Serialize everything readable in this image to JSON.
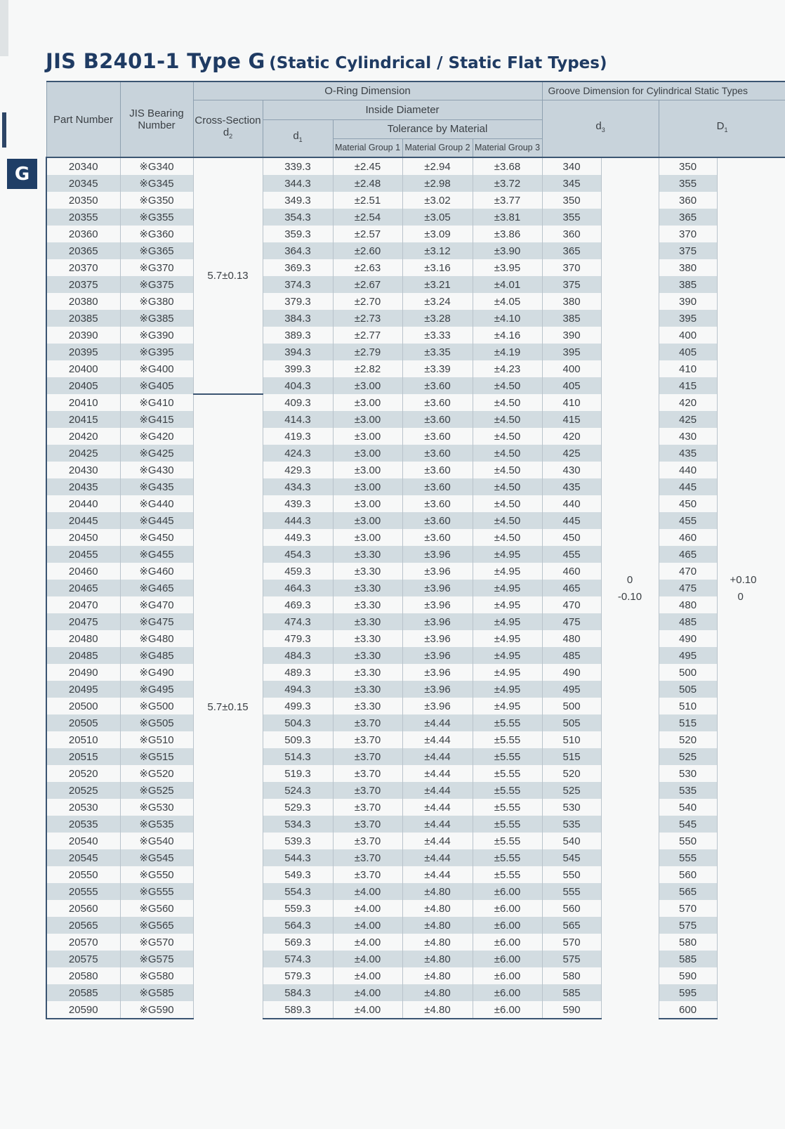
{
  "side_tab": {
    "label": "G"
  },
  "title": {
    "main": "JIS B2401-1 Type G",
    "sub": "(Static Cylindrical / Static Flat Types)"
  },
  "header": {
    "part_number": "Part Number",
    "jis_bearing_number": "JIS Bearing Number",
    "oring_dimension": "O-Ring Dimension",
    "cross_section": "Cross-Section",
    "cross_section_sym": "d",
    "cross_section_sub": "2",
    "inside_diameter": "Inside Diameter",
    "d1_sym": "d",
    "d1_sub": "1",
    "tolerance_by_material": "Tolerance by Material",
    "material_groups": [
      "Material Group 1",
      "Material Group 2",
      "Material Group 3"
    ],
    "groove_dimension": "Groove Dimension for Cylindrical Static Types",
    "d3_sym": "d",
    "d3_sub": "3",
    "D1_sym": "D",
    "D1_sub": "1"
  },
  "cross_section_groups": [
    {
      "value": "5.7±0.13",
      "rows": 14
    },
    {
      "value": "5.7±0.15",
      "rows": 37
    }
  ],
  "d3_tolerance": [
    "0",
    "-0.10"
  ],
  "D1_tolerance": [
    "+0.10",
    "0"
  ],
  "rows": [
    [
      "20340",
      "※G340",
      "339.3",
      "±2.45",
      "±2.94",
      "±3.68",
      "340",
      "350"
    ],
    [
      "20345",
      "※G345",
      "344.3",
      "±2.48",
      "±2.98",
      "±3.72",
      "345",
      "355"
    ],
    [
      "20350",
      "※G350",
      "349.3",
      "±2.51",
      "±3.02",
      "±3.77",
      "350",
      "360"
    ],
    [
      "20355",
      "※G355",
      "354.3",
      "±2.54",
      "±3.05",
      "±3.81",
      "355",
      "365"
    ],
    [
      "20360",
      "※G360",
      "359.3",
      "±2.57",
      "±3.09",
      "±3.86",
      "360",
      "370"
    ],
    [
      "20365",
      "※G365",
      "364.3",
      "±2.60",
      "±3.12",
      "±3.90",
      "365",
      "375"
    ],
    [
      "20370",
      "※G370",
      "369.3",
      "±2.63",
      "±3.16",
      "±3.95",
      "370",
      "380"
    ],
    [
      "20375",
      "※G375",
      "374.3",
      "±2.67",
      "±3.21",
      "±4.01",
      "375",
      "385"
    ],
    [
      "20380",
      "※G380",
      "379.3",
      "±2.70",
      "±3.24",
      "±4.05",
      "380",
      "390"
    ],
    [
      "20385",
      "※G385",
      "384.3",
      "±2.73",
      "±3.28",
      "±4.10",
      "385",
      "395"
    ],
    [
      "20390",
      "※G390",
      "389.3",
      "±2.77",
      "±3.33",
      "±4.16",
      "390",
      "400"
    ],
    [
      "20395",
      "※G395",
      "394.3",
      "±2.79",
      "±3.35",
      "±4.19",
      "395",
      "405"
    ],
    [
      "20400",
      "※G400",
      "399.3",
      "±2.82",
      "±3.39",
      "±4.23",
      "400",
      "410"
    ],
    [
      "20405",
      "※G405",
      "404.3",
      "±3.00",
      "±3.60",
      "±4.50",
      "405",
      "415"
    ],
    [
      "20410",
      "※G410",
      "409.3",
      "±3.00",
      "±3.60",
      "±4.50",
      "410",
      "420"
    ],
    [
      "20415",
      "※G415",
      "414.3",
      "±3.00",
      "±3.60",
      "±4.50",
      "415",
      "425"
    ],
    [
      "20420",
      "※G420",
      "419.3",
      "±3.00",
      "±3.60",
      "±4.50",
      "420",
      "430"
    ],
    [
      "20425",
      "※G425",
      "424.3",
      "±3.00",
      "±3.60",
      "±4.50",
      "425",
      "435"
    ],
    [
      "20430",
      "※G430",
      "429.3",
      "±3.00",
      "±3.60",
      "±4.50",
      "430",
      "440"
    ],
    [
      "20435",
      "※G435",
      "434.3",
      "±3.00",
      "±3.60",
      "±4.50",
      "435",
      "445"
    ],
    [
      "20440",
      "※G440",
      "439.3",
      "±3.00",
      "±3.60",
      "±4.50",
      "440",
      "450"
    ],
    [
      "20445",
      "※G445",
      "444.3",
      "±3.00",
      "±3.60",
      "±4.50",
      "445",
      "455"
    ],
    [
      "20450",
      "※G450",
      "449.3",
      "±3.00",
      "±3.60",
      "±4.50",
      "450",
      "460"
    ],
    [
      "20455",
      "※G455",
      "454.3",
      "±3.30",
      "±3.96",
      "±4.95",
      "455",
      "465"
    ],
    [
      "20460",
      "※G460",
      "459.3",
      "±3.30",
      "±3.96",
      "±4.95",
      "460",
      "470"
    ],
    [
      "20465",
      "※G465",
      "464.3",
      "±3.30",
      "±3.96",
      "±4.95",
      "465",
      "475"
    ],
    [
      "20470",
      "※G470",
      "469.3",
      "±3.30",
      "±3.96",
      "±4.95",
      "470",
      "480"
    ],
    [
      "20475",
      "※G475",
      "474.3",
      "±3.30",
      "±3.96",
      "±4.95",
      "475",
      "485"
    ],
    [
      "20480",
      "※G480",
      "479.3",
      "±3.30",
      "±3.96",
      "±4.95",
      "480",
      "490"
    ],
    [
      "20485",
      "※G485",
      "484.3",
      "±3.30",
      "±3.96",
      "±4.95",
      "485",
      "495"
    ],
    [
      "20490",
      "※G490",
      "489.3",
      "±3.30",
      "±3.96",
      "±4.95",
      "490",
      "500"
    ],
    [
      "20495",
      "※G495",
      "494.3",
      "±3.30",
      "±3.96",
      "±4.95",
      "495",
      "505"
    ],
    [
      "20500",
      "※G500",
      "499.3",
      "±3.30",
      "±3.96",
      "±4.95",
      "500",
      "510"
    ],
    [
      "20505",
      "※G505",
      "504.3",
      "±3.70",
      "±4.44",
      "±5.55",
      "505",
      "515"
    ],
    [
      "20510",
      "※G510",
      "509.3",
      "±3.70",
      "±4.44",
      "±5.55",
      "510",
      "520"
    ],
    [
      "20515",
      "※G515",
      "514.3",
      "±3.70",
      "±4.44",
      "±5.55",
      "515",
      "525"
    ],
    [
      "20520",
      "※G520",
      "519.3",
      "±3.70",
      "±4.44",
      "±5.55",
      "520",
      "530"
    ],
    [
      "20525",
      "※G525",
      "524.3",
      "±3.70",
      "±4.44",
      "±5.55",
      "525",
      "535"
    ],
    [
      "20530",
      "※G530",
      "529.3",
      "±3.70",
      "±4.44",
      "±5.55",
      "530",
      "540"
    ],
    [
      "20535",
      "※G535",
      "534.3",
      "±3.70",
      "±4.44",
      "±5.55",
      "535",
      "545"
    ],
    [
      "20540",
      "※G540",
      "539.3",
      "±3.70",
      "±4.44",
      "±5.55",
      "540",
      "550"
    ],
    [
      "20545",
      "※G545",
      "544.3",
      "±3.70",
      "±4.44",
      "±5.55",
      "545",
      "555"
    ],
    [
      "20550",
      "※G550",
      "549.3",
      "±3.70",
      "±4.44",
      "±5.55",
      "550",
      "560"
    ],
    [
      "20555",
      "※G555",
      "554.3",
      "±4.00",
      "±4.80",
      "±6.00",
      "555",
      "565"
    ],
    [
      "20560",
      "※G560",
      "559.3",
      "±4.00",
      "±4.80",
      "±6.00",
      "560",
      "570"
    ],
    [
      "20565",
      "※G565",
      "564.3",
      "±4.00",
      "±4.80",
      "±6.00",
      "565",
      "575"
    ],
    [
      "20570",
      "※G570",
      "569.3",
      "±4.00",
      "±4.80",
      "±6.00",
      "570",
      "580"
    ],
    [
      "20575",
      "※G575",
      "574.3",
      "±4.00",
      "±4.80",
      "±6.00",
      "575",
      "585"
    ],
    [
      "20580",
      "※G580",
      "579.3",
      "±4.00",
      "±4.80",
      "±6.00",
      "580",
      "590"
    ],
    [
      "20585",
      "※G585",
      "584.3",
      "±4.00",
      "±4.80",
      "±6.00",
      "585",
      "595"
    ],
    [
      "20590",
      "※G590",
      "589.3",
      "±4.00",
      "±4.80",
      "±6.00",
      "590",
      "600"
    ]
  ]
}
